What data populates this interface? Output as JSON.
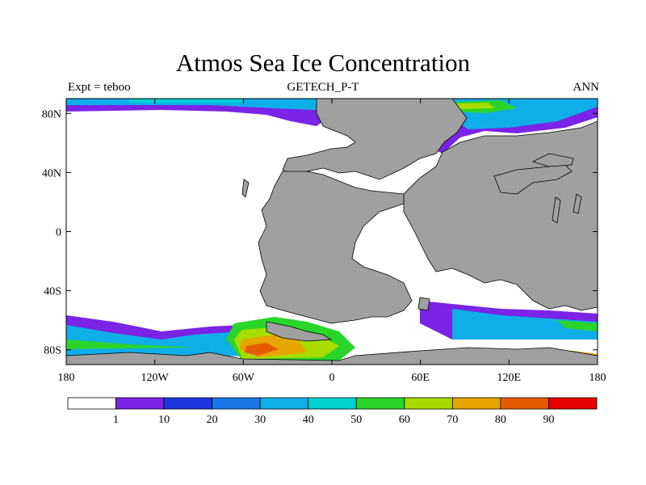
{
  "chart": {
    "title": "Atmos Sea Ice Concentration",
    "subtitle_left": "Expt = teboo",
    "subtitle_center": "GETECH_P-T",
    "subtitle_right": "ANN"
  },
  "chart_data": {
    "type": "heatmap",
    "title": "Atmos Sea Ice Concentration",
    "variable": "sea ice concentration",
    "x_range": [
      -180,
      180
    ],
    "y_range": [
      -90,
      90
    ],
    "x_ticks": [
      {
        "value": -180,
        "label": "180"
      },
      {
        "value": -120,
        "label": "120W"
      },
      {
        "value": -60,
        "label": "60W"
      },
      {
        "value": 0,
        "label": "0"
      },
      {
        "value": 60,
        "label": "60E"
      },
      {
        "value": 120,
        "label": "120E"
      },
      {
        "value": 180,
        "label": "180"
      }
    ],
    "y_ticks": [
      {
        "value": 80,
        "label": "80N"
      },
      {
        "value": 40,
        "label": "40N"
      },
      {
        "value": 0,
        "label": "0"
      },
      {
        "value": -40,
        "label": "40S"
      },
      {
        "value": -80,
        "label": "80S"
      }
    ],
    "colorbar": {
      "labels": [
        "1",
        "10",
        "20",
        "30",
        "40",
        "50",
        "60",
        "70",
        "80",
        "90"
      ],
      "colors": [
        "#ffffff",
        "#7a24e6",
        "#1f37e0",
        "#1a78e8",
        "#10aee8",
        "#00d2d2",
        "#2ad52a",
        "#a8dc00",
        "#e6a500",
        "#e65a00",
        "#e60000"
      ]
    },
    "land_color": "#a0a0a0"
  }
}
